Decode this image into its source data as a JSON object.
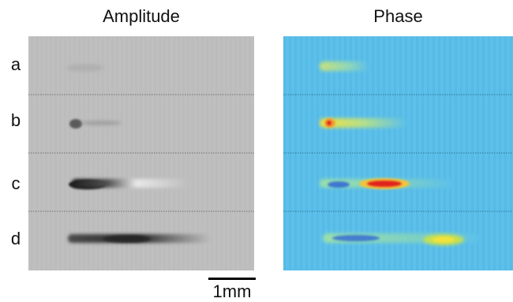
{
  "panels": {
    "amplitude_title": "Amplitude",
    "phase_title": "Phase"
  },
  "rows": [
    {
      "label": "a"
    },
    {
      "label": "b"
    },
    {
      "label": "c"
    },
    {
      "label": "d"
    }
  ],
  "scale_bar": {
    "label": "1mm"
  },
  "colors": {
    "amplitude_background": "#bcbcbc",
    "phase_background": "#5cc0ea",
    "phase_high": "#e0201a",
    "phase_mid": "#f2e23a",
    "phase_low": "#2c5fd8"
  }
}
